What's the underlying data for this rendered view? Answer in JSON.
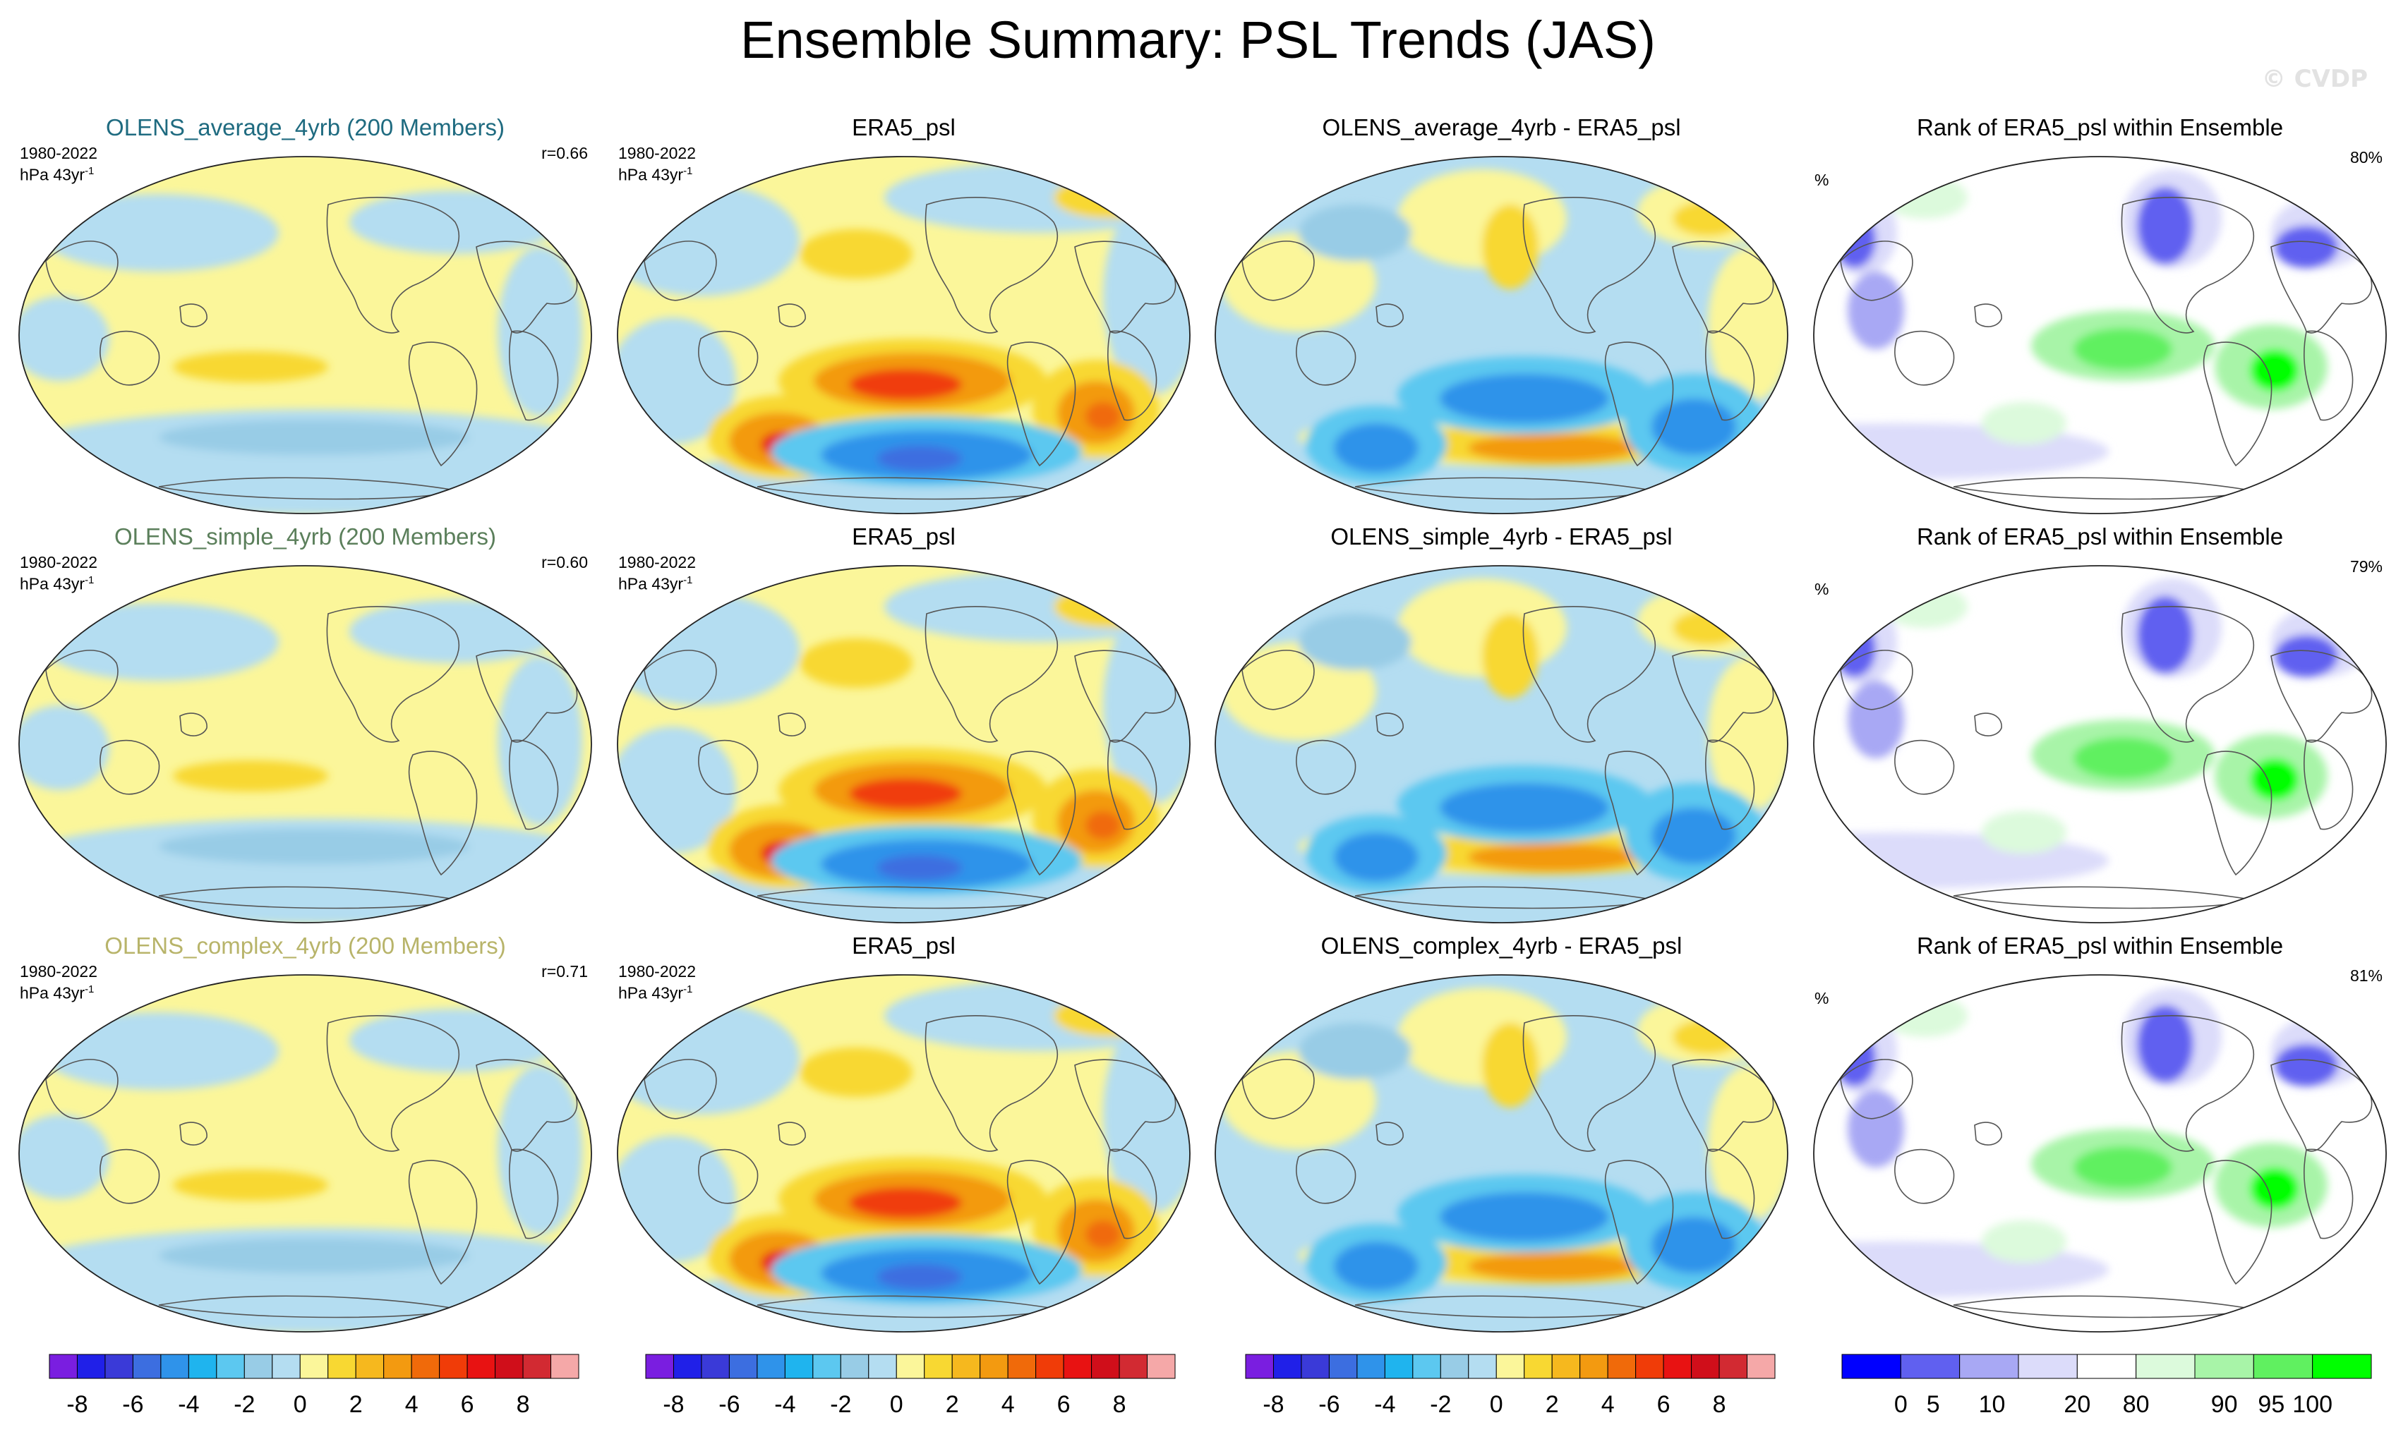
{
  "title": "Ensemble Summary: PSL Trends (JAS)",
  "watermark": "© CVDP",
  "colors": {
    "ensemble_titles": [
      "#1f6b80",
      "#5b7f5b",
      "#b8b46a"
    ],
    "ocean_neg": "#add8ec",
    "land_pos": "#fbf69a",
    "rank_bg": "#ffffff"
  },
  "chart_data": [
    {
      "type": "heatmap",
      "title": "OLENS_average_4yrb (200 Members)",
      "period": "1980-2022",
      "units": "hPa 43yr",
      "units_sup": "-1",
      "stat": "r=0.66",
      "kind": "ensemble"
    },
    {
      "type": "heatmap",
      "title": "ERA5_psl",
      "period": "1980-2022",
      "units": "hPa 43yr",
      "units_sup": "-1",
      "kind": "obs"
    },
    {
      "type": "heatmap",
      "title": "OLENS_average_4yrb - ERA5_psl",
      "kind": "diff"
    },
    {
      "type": "heatmap",
      "title": "Rank of ERA5_psl within Ensemble",
      "units": "%",
      "stat": "80%",
      "kind": "rank"
    },
    {
      "type": "heatmap",
      "title": "OLENS_simple_4yrb (200 Members)",
      "period": "1980-2022",
      "units": "hPa 43yr",
      "units_sup": "-1",
      "stat": "r=0.60",
      "kind": "ensemble"
    },
    {
      "type": "heatmap",
      "title": "ERA5_psl",
      "period": "1980-2022",
      "units": "hPa 43yr",
      "units_sup": "-1",
      "kind": "obs"
    },
    {
      "type": "heatmap",
      "title": "OLENS_simple_4yrb - ERA5_psl",
      "kind": "diff"
    },
    {
      "type": "heatmap",
      "title": "Rank of ERA5_psl within Ensemble",
      "units": "%",
      "stat": "79%",
      "kind": "rank"
    },
    {
      "type": "heatmap",
      "title": "OLENS_complex_4yrb (200 Members)",
      "period": "1980-2022",
      "units": "hPa 43yr",
      "units_sup": "-1",
      "stat": "r=0.71",
      "kind": "ensemble"
    },
    {
      "type": "heatmap",
      "title": "ERA5_psl",
      "period": "1980-2022",
      "units": "hPa 43yr",
      "units_sup": "-1",
      "kind": "obs"
    },
    {
      "type": "heatmap",
      "title": "OLENS_complex_4yrb - ERA5_psl",
      "kind": "diff"
    },
    {
      "type": "heatmap",
      "title": "Rank of ERA5_psl within Ensemble",
      "units": "%",
      "stat": "81%",
      "kind": "rank"
    }
  ],
  "colorbars": {
    "trend": {
      "colors": [
        "#7a1ee0",
        "#2020e8",
        "#3a3ad8",
        "#3c6ee0",
        "#2f93ea",
        "#1fb4ee",
        "#5cc8f0",
        "#98cce6",
        "#b4ddf1",
        "#fbf69a",
        "#f8d832",
        "#f6b81e",
        "#f39a10",
        "#f06a0a",
        "#f03c08",
        "#e81212",
        "#d00e1a",
        "#d22a32",
        "#f5a8a8"
      ],
      "ticks": [
        "-8",
        "-6",
        "-4",
        "-2",
        "0",
        "2",
        "4",
        "6",
        "8"
      ]
    },
    "rank": {
      "colors": [
        "#0000ff",
        "#6060f0",
        "#a8a8f4",
        "#dcdcfa",
        "#ffffff",
        "#dcfadc",
        "#a8f4a8",
        "#60f060",
        "#00ff00"
      ],
      "ticks": [
        "0",
        "5",
        "10",
        "20",
        "80",
        "90",
        "95",
        "100"
      ]
    }
  }
}
